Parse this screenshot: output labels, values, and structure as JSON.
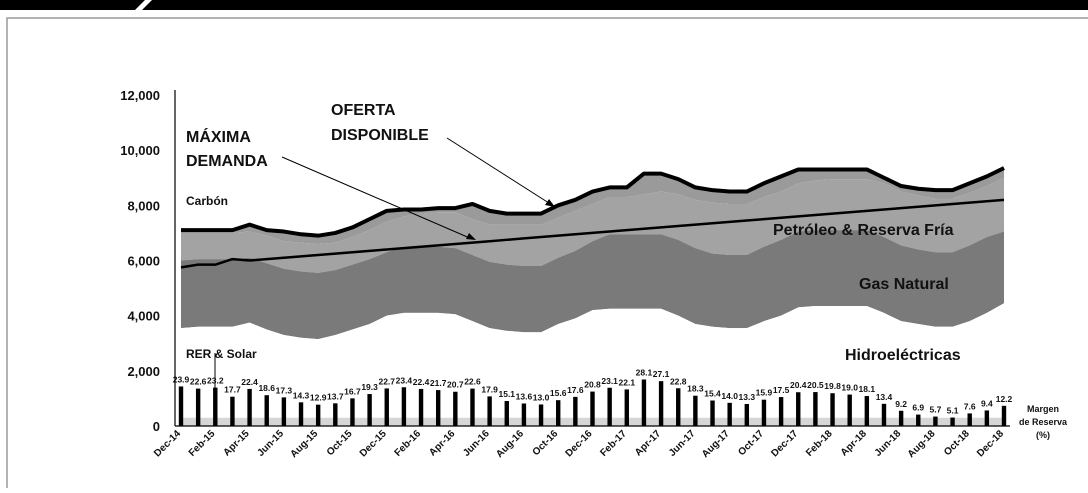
{
  "chart_data": {
    "type": "area",
    "yticks": [
      "0",
      "2,000",
      "4,000",
      "6,000",
      "8,000",
      "10,000",
      "12,000"
    ],
    "ylim": [
      0,
      12000
    ],
    "grid": false,
    "x_tick_labels": [
      "Dec-14",
      "Feb-15",
      "Apr-15",
      "Jun-15",
      "Aug-15",
      "Oct-15",
      "Dec-15",
      "Feb-16",
      "Apr-16",
      "Jun-16",
      "Aug-16",
      "Oct-16",
      "Dec-16",
      "Feb-17",
      "Apr-17",
      "Jun-17",
      "Aug-17",
      "Oct-17",
      "Dec-17",
      "Feb-18",
      "Apr-18",
      "Jun-18",
      "Aug-18",
      "Oct-18",
      "Dec-18"
    ],
    "months": [
      "Dec-14",
      "Jan-15",
      "Feb-15",
      "Mar-15",
      "Apr-15",
      "May-15",
      "Jun-15",
      "Jul-15",
      "Aug-15",
      "Sep-15",
      "Oct-15",
      "Nov-15",
      "Dec-15",
      "Jan-16",
      "Feb-16",
      "Mar-16",
      "Apr-16",
      "May-16",
      "Jun-16",
      "Jul-16",
      "Aug-16",
      "Sep-16",
      "Oct-16",
      "Nov-16",
      "Dec-16",
      "Jan-17",
      "Feb-17",
      "Mar-17",
      "Apr-17",
      "May-17",
      "Jun-17",
      "Jul-17",
      "Aug-17",
      "Sep-17",
      "Oct-17",
      "Nov-17",
      "Dec-17",
      "Jan-18",
      "Feb-18",
      "Mar-18",
      "Apr-18",
      "May-18",
      "Jun-18",
      "Jul-18",
      "Aug-18",
      "Sep-18",
      "Oct-18",
      "Nov-18",
      "Dec-18"
    ],
    "stack_tops": {
      "rer_solar": [
        300,
        300,
        300,
        300,
        300,
        300,
        300,
        300,
        300,
        300,
        300,
        300,
        300,
        300,
        300,
        300,
        300,
        300,
        300,
        300,
        300,
        300,
        300,
        300,
        300,
        300,
        300,
        300,
        300,
        300,
        300,
        300,
        300,
        300,
        300,
        300,
        300,
        300,
        300,
        300,
        300,
        300,
        300,
        300,
        300,
        300,
        300,
        300,
        300
      ],
      "hidroelectricas": [
        3550,
        3600,
        3600,
        3600,
        3750,
        3500,
        3300,
        3200,
        3150,
        3300,
        3500,
        3700,
        4000,
        4100,
        4100,
        4100,
        4050,
        3800,
        3550,
        3450,
        3400,
        3400,
        3700,
        3900,
        4200,
        4250,
        4250,
        4250,
        4250,
        4000,
        3700,
        3600,
        3550,
        3550,
        3800,
        4000,
        4300,
        4350,
        4350,
        4350,
        4350,
        4100,
        3800,
        3700,
        3600,
        3600,
        3800,
        4100,
        4450
      ],
      "gas_natural": [
        6000,
        6050,
        6050,
        6050,
        6100,
        5900,
        5700,
        5600,
        5550,
        5650,
        5850,
        6050,
        6300,
        6500,
        6500,
        6500,
        6450,
        6200,
        5950,
        5850,
        5800,
        5800,
        6100,
        6350,
        6700,
        6950,
        6950,
        6950,
        6950,
        6750,
        6450,
        6250,
        6200,
        6200,
        6500,
        6750,
        7050,
        7100,
        7100,
        7100,
        7100,
        6850,
        6550,
        6400,
        6300,
        6300,
        6550,
        6850,
        7050
      ],
      "petroleo_reserva_fria": [
        7000,
        7000,
        7000,
        7000,
        7050,
        6900,
        6700,
        6650,
        6600,
        6650,
        6850,
        7100,
        7400,
        7600,
        7700,
        7750,
        7750,
        7500,
        7300,
        7300,
        7300,
        7300,
        7550,
        7800,
        8050,
        8300,
        8300,
        8400,
        8500,
        8400,
        8200,
        8100,
        8050,
        8050,
        8300,
        8500,
        8800,
        8900,
        8950,
        8950,
        8950,
        8800,
        8500,
        8350,
        8250,
        8250,
        8450,
        8700,
        9000
      ],
      "carbon": [
        7100,
        7100,
        7100,
        7100,
        7300,
        7100,
        7050,
        6950,
        6900,
        7000,
        7200,
        7500,
        7800,
        7850,
        7850,
        7900,
        7900,
        8050,
        7800,
        7700,
        7700,
        7700,
        8000,
        8200,
        8500,
        8650,
        8650,
        9150,
        9150,
        8950,
        8650,
        8550,
        8500,
        8500,
        8800,
        9050,
        9300,
        9300,
        9300,
        9300,
        9300,
        9000,
        8700,
        8600,
        8550,
        8550,
        8800,
        9050,
        9350
      ]
    },
    "series": [
      {
        "name": "OFERTA DISPONIBLE",
        "values": [
          7100,
          7100,
          7100,
          7100,
          7300,
          7100,
          7050,
          6950,
          6900,
          7000,
          7200,
          7500,
          7800,
          7850,
          7850,
          7900,
          7900,
          8050,
          7800,
          7700,
          7700,
          7700,
          8000,
          8200,
          8500,
          8650,
          8650,
          9150,
          9150,
          8950,
          8650,
          8550,
          8500,
          8500,
          8800,
          9050,
          9300,
          9300,
          9300,
          9300,
          9300,
          9000,
          8700,
          8600,
          8550,
          8550,
          8800,
          9050,
          9350
        ]
      },
      {
        "name": "MÁXIMA DEMANDA",
        "values": [
          5750,
          5850,
          5850,
          6050,
          6000,
          6050,
          6100,
          6150,
          6200,
          6250,
          6300,
          6350,
          6400,
          6450,
          6500,
          6550,
          6600,
          6650,
          6700,
          6750,
          6800,
          6850,
          6900,
          6950,
          7000,
          7050,
          7100,
          7150,
          7200,
          7250,
          7300,
          7350,
          7400,
          7450,
          7500,
          7550,
          7600,
          7650,
          7700,
          7750,
          7800,
          7850,
          7900,
          7950,
          8000,
          8050,
          8100,
          8150,
          8200
        ]
      },
      {
        "name": "Margen de Reserva (%)",
        "values": [
          23.9,
          22.6,
          23.2,
          17.7,
          22.4,
          18.6,
          17.3,
          14.3,
          12.9,
          13.7,
          16.7,
          19.3,
          22.7,
          23.4,
          22.4,
          21.7,
          20.7,
          22.6,
          17.9,
          15.1,
          13.6,
          13.0,
          15.6,
          17.6,
          20.8,
          23.1,
          22.1,
          28.1,
          27.1,
          22.8,
          18.3,
          15.4,
          14.0,
          13.3,
          15.9,
          17.5,
          20.4,
          20.5,
          19.8,
          19.0,
          18.1,
          13.4,
          9.2,
          6.9,
          5.7,
          5.1,
          7.6,
          9.4,
          12.2
        ]
      }
    ],
    "reserve_bar_scale": 60,
    "annotations": {
      "carbon": "Carbón",
      "petroleo": "Petróleo & Reserva Fría",
      "gas": "Gas Natural",
      "rer": "RER & Solar",
      "hidro": "Hidroeléctricas",
      "oferta_1": "OFERTA",
      "oferta_2": "DISPONIBLE",
      "demanda_1": "MÁXIMA",
      "demanda_2": "DEMANDA",
      "margen_1": "Margen",
      "margen_2": "de Reserva",
      "margen_3": "(%)"
    }
  },
  "colors": {
    "background": "#ffffff",
    "top_bar": "#000000",
    "frame_border": "#9a9a9a",
    "rer_solar": "#d6d6d6",
    "hidroelectricas": "#ffffff",
    "gas_natural": "#7a7a7a",
    "petroleo_reserva_fria": "#a3a3a3",
    "carbon": "#9a9a9a",
    "oferta_line": "#000000",
    "demanda_line": "#000000",
    "reserve_bars": "#000000",
    "axis": "#000000"
  }
}
